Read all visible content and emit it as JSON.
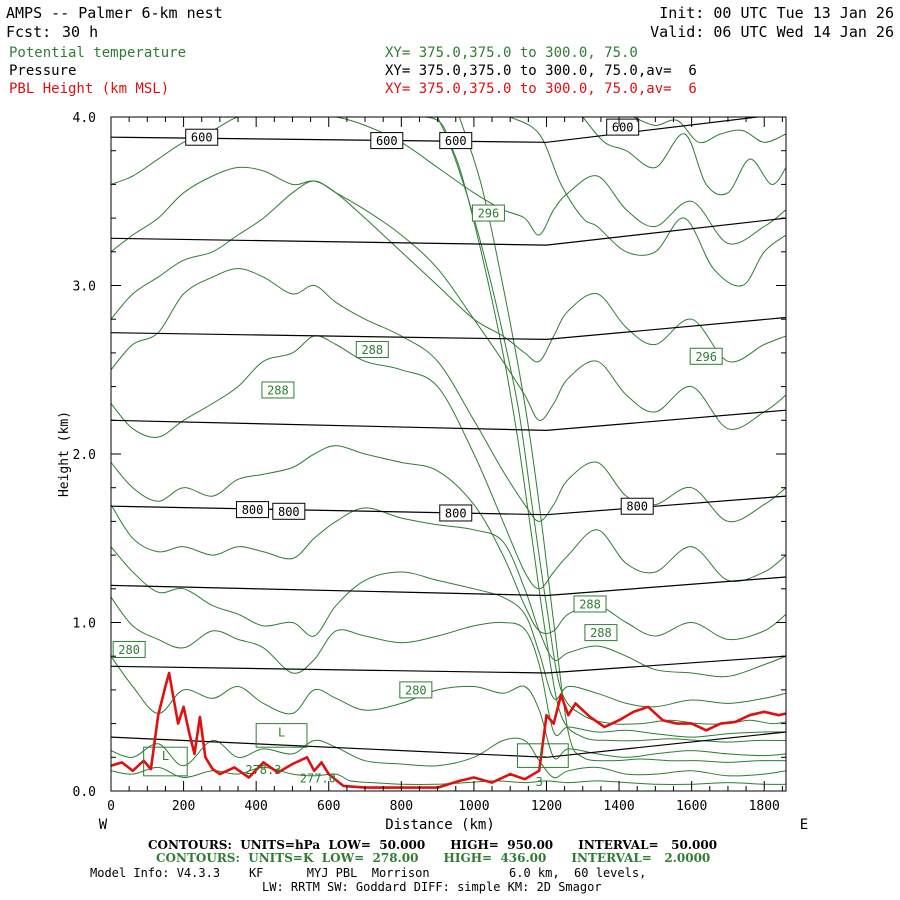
{
  "header": {
    "title": "AMPS -- Palmer 6-km nest",
    "fcst_label": "Fcst:",
    "fcst_value": "30 h",
    "init": "Init: 00 UTC Tue 13 Jan 26",
    "valid": "Valid: 06 UTC Wed 14 Jan 26",
    "field1": "Potential temperature",
    "field2": "Pressure",
    "field3": "PBL Height (km MSL)",
    "xy1": "XY= 375.0,375.0 to 300.0, 75.0",
    "xy2": "XY= 375.0,375.0 to 300.0, 75.0,av=  6",
    "xy3": "XY= 375.0,375.0 to 300.0, 75.0,av=  6"
  },
  "colors": {
    "theta": "#2e7d32",
    "pressure": "#000000",
    "pbl": "#e01010"
  },
  "footer": {
    "line1": "CONTOURS:  UNITS=hPa  LOW=  50.000      HIGH=  950.00      INTERVAL=   50.000",
    "line2": "CONTOURS:  UNITS=K  LOW=  278.00      HIGH=  436.00      INTERVAL=   2.0000",
    "line3": "Model Info: V4.3.3    KF      MYJ PBL  Morrison           6.0 km,  60 levels,",
    "line4": "LW: RRTM SW: Goddard DIFF: simple KM: 2D Smagor"
  },
  "chart_data": {
    "type": "line",
    "xlabel": "Distance (km)",
    "ylabel": "Height (km)",
    "xlim": [
      0,
      1860
    ],
    "ylim": [
      0,
      4
    ],
    "x_ticks": [
      "0",
      "200",
      "400",
      "600",
      "800",
      "1000",
      "1200",
      "1400",
      "1600",
      "1800"
    ],
    "y_ticks": [
      "0.0",
      "1.0",
      "2.0",
      "3.0",
      "4.0"
    ],
    "x_end_labels": {
      "left": "W",
      "right": "E"
    },
    "pbl_height": {
      "x": [
        0,
        30,
        60,
        90,
        110,
        130,
        150,
        160,
        170,
        185,
        200,
        215,
        230,
        245,
        260,
        280,
        300,
        340,
        380,
        420,
        460,
        500,
        540,
        560,
        580,
        600,
        640,
        700,
        800,
        900,
        960,
        1000,
        1050,
        1100,
        1140,
        1180,
        1200,
        1220,
        1240,
        1260,
        1280,
        1320,
        1360,
        1400,
        1440,
        1480,
        1520,
        1560,
        1600,
        1640,
        1680,
        1720,
        1760,
        1800,
        1840,
        1860
      ],
      "y": [
        0.15,
        0.17,
        0.12,
        0.18,
        0.13,
        0.45,
        0.62,
        0.7,
        0.58,
        0.4,
        0.5,
        0.35,
        0.22,
        0.44,
        0.2,
        0.13,
        0.1,
        0.14,
        0.08,
        0.17,
        0.11,
        0.16,
        0.2,
        0.12,
        0.17,
        0.1,
        0.03,
        0.02,
        0.02,
        0.02,
        0.06,
        0.08,
        0.05,
        0.1,
        0.07,
        0.12,
        0.45,
        0.4,
        0.57,
        0.45,
        0.52,
        0.44,
        0.38,
        0.42,
        0.47,
        0.5,
        0.42,
        0.4,
        0.4,
        0.36,
        0.4,
        0.41,
        0.45,
        0.47,
        0.45,
        0.46
      ]
    },
    "pressure_contours": [
      {
        "level": 950,
        "x": [
          0,
          1200,
          1860
        ],
        "y": [
          0.32,
          0.2,
          0.35
        ]
      },
      {
        "level": 900,
        "x": [
          0,
          1200,
          1860
        ],
        "y": [
          0.74,
          0.7,
          0.8
        ]
      },
      {
        "level": 850,
        "x": [
          0,
          1200,
          1860
        ],
        "y": [
          1.22,
          1.16,
          1.27
        ]
      },
      {
        "level": 800,
        "x": [
          0,
          1200,
          1860
        ],
        "y": [
          1.69,
          1.64,
          1.75
        ]
      },
      {
        "level": 750,
        "x": [
          0,
          1200,
          1860
        ],
        "y": [
          2.2,
          2.14,
          2.26
        ]
      },
      {
        "level": 700,
        "x": [
          0,
          1200,
          1860
        ],
        "y": [
          2.72,
          2.68,
          2.81
        ]
      },
      {
        "level": 650,
        "x": [
          0,
          1200,
          1860
        ],
        "y": [
          3.28,
          3.24,
          3.4
        ]
      },
      {
        "level": 600,
        "x": [
          0,
          1200,
          1860
        ],
        "y": [
          3.88,
          3.85,
          4.02
        ]
      }
    ],
    "pressure_labels": [
      {
        "text": "600",
        "x": 250,
        "y": 3.88
      },
      {
        "text": "600",
        "x": 760,
        "y": 3.86
      },
      {
        "text": "600",
        "x": 950,
        "y": 3.86
      },
      {
        "text": "600",
        "x": 1410,
        "y": 3.94
      },
      {
        "text": "800",
        "x": 390,
        "y": 1.67
      },
      {
        "text": "800",
        "x": 490,
        "y": 1.66
      },
      {
        "text": "800",
        "x": 950,
        "y": 1.65
      },
      {
        "text": "800",
        "x": 1450,
        "y": 1.69
      }
    ],
    "theta_contours": [
      {
        "x": [
          0,
          60,
          130,
          200,
          280,
          350,
          420,
          500,
          560,
          620,
          660,
          720,
          800,
          900,
          980,
          1060,
          1140,
          1200,
          1260,
          1340,
          1420,
          1500,
          1600,
          1700,
          1800,
          1860
        ],
        "y": [
          0.12,
          0.1,
          0.14,
          0.08,
          0.12,
          0.1,
          0.14,
          0.1,
          0.09,
          0.1,
          0.06,
          0.05,
          0.04,
          0.04,
          0.05,
          0.06,
          0.05,
          0.06,
          0.05,
          0.06,
          0.05,
          0.04,
          0.04,
          0.05,
          0.04,
          0.04
        ]
      },
      {
        "x": [
          0,
          60,
          130,
          200,
          280,
          350,
          420,
          500,
          560,
          620,
          700,
          800,
          900,
          1000,
          1080,
          1140,
          1180,
          1220,
          1260,
          1340,
          1420,
          1500,
          1600,
          1700,
          1800,
          1860
        ],
        "y": [
          0.24,
          0.2,
          0.28,
          0.15,
          0.3,
          0.2,
          0.25,
          0.22,
          0.3,
          0.26,
          0.18,
          0.16,
          0.15,
          0.2,
          0.3,
          0.3,
          0.18,
          0.08,
          0.12,
          0.14,
          0.1,
          0.1,
          0.12,
          0.09,
          0.1,
          0.12
        ]
      },
      {
        "x": [
          0,
          60,
          130,
          200,
          280,
          350,
          420,
          500,
          560,
          620,
          700,
          800,
          900,
          1000,
          1080,
          1140,
          1180,
          1220,
          1260,
          1340,
          1420,
          1500,
          1600,
          1700,
          1800,
          1860
        ],
        "y": [
          0.8,
          0.62,
          0.46,
          0.6,
          0.55,
          0.62,
          0.52,
          0.46,
          0.6,
          0.55,
          0.48,
          0.52,
          0.6,
          0.62,
          0.58,
          0.62,
          0.48,
          0.2,
          0.25,
          0.22,
          0.2,
          0.22,
          0.24,
          0.22,
          0.21,
          0.22
        ]
      },
      {
        "x": [
          0,
          60,
          130,
          200,
          280,
          350,
          420,
          500,
          560,
          620,
          700,
          800,
          900,
          1000,
          1080,
          1140,
          1180,
          1220,
          1260,
          1340,
          1420,
          1500,
          1600,
          1700,
          1800,
          1860
        ],
        "y": [
          1.15,
          0.98,
          0.9,
          0.85,
          0.95,
          0.9,
          0.85,
          0.7,
          0.78,
          0.95,
          0.92,
          0.88,
          0.92,
          0.98,
          1.0,
          0.96,
          0.75,
          0.35,
          0.38,
          0.35,
          0.36,
          0.34,
          0.32,
          0.34,
          0.35,
          0.35
        ]
      },
      {
        "x": [
          0,
          60,
          130,
          200,
          280,
          350,
          420,
          500,
          560,
          620,
          700,
          800,
          900,
          1000,
          1080,
          1140,
          1180,
          1220,
          1260,
          1340,
          1420,
          1500,
          1600,
          1700,
          1800,
          1860
        ],
        "y": [
          1.45,
          1.3,
          1.18,
          1.2,
          1.1,
          1.05,
          0.98,
          1.0,
          0.92,
          1.1,
          1.25,
          1.3,
          1.25,
          1.2,
          1.15,
          1.05,
          0.82,
          0.55,
          0.62,
          0.58,
          0.52,
          0.5,
          0.54,
          0.52,
          0.55,
          0.58
        ]
      },
      {
        "x": [
          0,
          60,
          130,
          200,
          280,
          350,
          420,
          500,
          560,
          620,
          700,
          800,
          900,
          1000,
          1080,
          1140,
          1180,
          1220,
          1260,
          1340,
          1420,
          1500,
          1600,
          1700,
          1800,
          1860
        ],
        "y": [
          1.7,
          1.5,
          1.42,
          1.45,
          1.4,
          1.45,
          1.42,
          1.38,
          1.5,
          1.6,
          1.68,
          1.62,
          1.58,
          1.55,
          1.48,
          1.2,
          0.95,
          0.78,
          0.82,
          0.86,
          0.8,
          0.72,
          0.7,
          0.68,
          0.75,
          0.8
        ]
      },
      {
        "x": [
          0,
          60,
          130,
          200,
          280,
          350,
          420,
          500,
          560,
          620,
          700,
          800,
          900,
          1000,
          1080,
          1140,
          1180,
          1220,
          1260,
          1340,
          1420,
          1500,
          1600,
          1700,
          1800,
          1860
        ],
        "y": [
          1.95,
          1.8,
          1.72,
          1.8,
          1.75,
          1.85,
          1.88,
          1.92,
          2.0,
          2.05,
          2.0,
          1.95,
          1.9,
          1.7,
          1.4,
          1.1,
          0.95,
          0.95,
          1.05,
          1.1,
          1.0,
          0.92,
          1.0,
          0.9,
          0.95,
          1.05
        ]
      },
      {
        "x": [
          0,
          60,
          130,
          200,
          280,
          350,
          420,
          500,
          560,
          620,
          700,
          800,
          900,
          1000,
          1080,
          1140,
          1180,
          1220,
          1260,
          1340,
          1420,
          1500,
          1600,
          1700,
          1800,
          1860
        ],
        "y": [
          2.3,
          2.15,
          2.1,
          2.2,
          2.3,
          2.4,
          2.55,
          2.6,
          2.7,
          2.65,
          2.55,
          2.5,
          2.4,
          2.0,
          1.6,
          1.3,
          1.2,
          1.3,
          1.4,
          1.55,
          1.35,
          1.3,
          1.45,
          1.25,
          1.3,
          1.4
        ]
      },
      {
        "x": [
          0,
          60,
          130,
          200,
          280,
          350,
          420,
          500,
          560,
          620,
          700,
          800,
          900,
          1000,
          1080,
          1140,
          1180,
          1220,
          1260,
          1340,
          1420,
          1500,
          1600,
          1700,
          1800,
          1860
        ],
        "y": [
          2.5,
          2.65,
          2.72,
          2.95,
          3.05,
          3.1,
          3.05,
          2.95,
          3.0,
          2.9,
          2.8,
          2.7,
          2.55,
          2.2,
          1.9,
          1.7,
          1.6,
          1.7,
          1.85,
          1.95,
          1.75,
          1.7,
          1.8,
          1.6,
          1.7,
          1.8
        ]
      },
      {
        "x": [
          0,
          60,
          130,
          200,
          280,
          350,
          420,
          500,
          560,
          620,
          700,
          800,
          900,
          1000,
          1080,
          1140,
          1180,
          1220,
          1260,
          1340,
          1420,
          1500,
          1600,
          1700,
          1800,
          1860
        ],
        "y": [
          2.8,
          2.95,
          3.05,
          3.15,
          3.2,
          3.3,
          3.4,
          3.55,
          3.62,
          3.55,
          3.45,
          3.3,
          3.1,
          2.8,
          2.55,
          2.35,
          2.2,
          2.3,
          2.45,
          2.55,
          2.35,
          2.25,
          2.4,
          2.15,
          2.25,
          2.35
        ]
      },
      {
        "x": [
          0,
          60,
          130,
          200,
          280,
          350,
          420,
          500,
          560,
          620,
          700,
          800,
          900,
          1000,
          1080,
          1140,
          1180,
          1220,
          1260,
          1340,
          1420,
          1500,
          1600,
          1700,
          1800,
          1860
        ],
        "y": [
          3.2,
          3.3,
          3.4,
          3.55,
          3.65,
          3.7,
          3.68,
          3.6,
          3.62,
          3.55,
          3.4,
          3.2,
          3.0,
          2.8,
          2.7,
          2.6,
          2.55,
          2.7,
          2.85,
          2.95,
          2.75,
          2.65,
          2.8,
          2.55,
          2.65,
          2.7
        ]
      },
      {
        "x": [
          0,
          60,
          130,
          200,
          280,
          350,
          420,
          500,
          560,
          620,
          700,
          800,
          900,
          1000,
          1080,
          1140,
          1180,
          1220,
          1260,
          1340,
          1420,
          1500,
          1600,
          1700,
          1800,
          1860
        ],
        "y": [
          3.6,
          3.65,
          3.75,
          3.85,
          3.92,
          4.0,
          4.0,
          4.0,
          4.0,
          4.0,
          3.95,
          3.85,
          3.7,
          3.55,
          3.45,
          3.4,
          3.3,
          3.45,
          3.55,
          3.65,
          3.45,
          3.35,
          3.5,
          3.25,
          3.35,
          3.45
        ]
      },
      {
        "x": [
          600,
          700,
          800,
          900,
          940,
          1000,
          1060,
          1120,
          1160,
          1200,
          1240,
          1300,
          1380,
          1460,
          1540,
          1620,
          1700,
          1760,
          1820,
          1860
        ],
        "y": [
          4.0,
          4.0,
          4.0,
          3.98,
          3.8,
          3.4,
          2.9,
          2.3,
          1.7,
          1.1,
          0.6,
          0.45,
          0.4,
          0.4,
          0.42,
          0.4,
          0.4,
          0.42,
          0.4,
          0.41
        ]
      },
      {
        "x": [
          900,
          960,
          1020,
          1080,
          1120,
          1160,
          1200,
          1240,
          1300,
          1380,
          1460,
          1540,
          1620,
          1700,
          1780,
          1860
        ],
        "y": [
          4.0,
          3.7,
          3.2,
          2.6,
          2.1,
          1.5,
          0.9,
          0.45,
          0.32,
          0.3,
          0.3,
          0.31,
          0.3,
          0.29,
          0.3,
          0.3
        ]
      },
      {
        "x": [
          960,
          1020,
          1080,
          1140,
          1180,
          1220,
          1260,
          1300,
          1380,
          1460,
          1540,
          1620,
          1700,
          1780,
          1860
        ],
        "y": [
          4.0,
          3.6,
          3.0,
          2.3,
          1.7,
          1.0,
          0.35,
          0.2,
          0.18,
          0.19,
          0.18,
          0.18,
          0.17,
          0.18,
          0.18
        ]
      },
      {
        "x": [
          1100,
          1180,
          1240,
          1300,
          1340,
          1420,
          1500,
          1580,
          1660,
          1740,
          1800,
          1860
        ],
        "y": [
          4.0,
          3.9,
          3.6,
          3.4,
          3.35,
          3.2,
          3.2,
          3.4,
          3.1,
          3.0,
          3.2,
          3.3
        ]
      },
      {
        "x": [
          1300,
          1360,
          1420,
          1500,
          1580,
          1640,
          1700,
          1760,
          1820,
          1860
        ],
        "y": [
          4.0,
          3.85,
          3.8,
          3.7,
          3.9,
          3.6,
          3.55,
          3.75,
          3.6,
          3.7
        ]
      },
      {
        "x": [
          1440,
          1500,
          1560,
          1620,
          1680,
          1740,
          1800,
          1860
        ],
        "y": [
          4.0,
          3.95,
          3.98,
          3.85,
          3.9,
          3.92,
          3.85,
          3.9
        ]
      }
    ],
    "theta_labels": [
      {
        "text": "296",
        "x": 1040,
        "y": 3.43
      },
      {
        "text": "296",
        "x": 1640,
        "y": 2.58
      },
      {
        "text": "288",
        "x": 720,
        "y": 2.62
      },
      {
        "text": "288",
        "x": 460,
        "y": 2.38
      },
      {
        "text": "288",
        "x": 1320,
        "y": 1.11
      },
      {
        "text": "288",
        "x": 1350,
        "y": 0.94
      },
      {
        "text": "280",
        "x": 50,
        "y": 0.84
      },
      {
        "text": "280",
        "x": 840,
        "y": 0.6
      }
    ],
    "surface_labels": [
      {
        "text": "L",
        "x": 90,
        "y": 0.09,
        "w": 120,
        "h": 0.17
      },
      {
        "text": "L",
        "x": 400,
        "y": 0.26,
        "w": 140,
        "h": 0.14
      },
      {
        "text": "L",
        "x": 1120,
        "y": 0.14,
        "w": 140,
        "h": 0.14
      }
    ],
    "surface_values": [
      {
        "text": "278.3",
        "x": 420,
        "y": 0.1
      },
      {
        "text": "277.0",
        "x": 570,
        "y": 0.05
      },
      {
        "text": "3",
        "x": 1180,
        "y": 0.03
      }
    ]
  }
}
